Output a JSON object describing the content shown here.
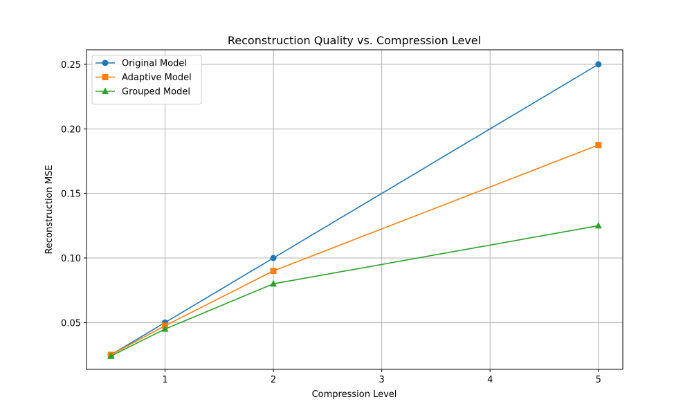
{
  "chart_data": {
    "type": "line",
    "title": "Reconstruction Quality vs. Compression Level",
    "xlabel": "Compression Level",
    "ylabel": "Reconstruction MSE",
    "x": [
      0.5,
      1,
      2,
      5
    ],
    "xlim": [
      0.275,
      5.225
    ],
    "ylim": [
      0.01375,
      0.26125
    ],
    "xticks": [
      1,
      2,
      3,
      4,
      5
    ],
    "xtick_labels": [
      "1",
      "2",
      "3",
      "4",
      "5"
    ],
    "yticks": [
      0.05,
      0.1,
      0.15,
      0.2,
      0.25
    ],
    "ytick_labels": [
      "0.05",
      "0.10",
      "0.15",
      "0.20",
      "0.25"
    ],
    "grid": true,
    "legend_position": "top-left",
    "series": [
      {
        "name": "Original Model",
        "values": [
          0.025,
          0.05,
          0.1,
          0.25
        ],
        "color": "#1f77b4",
        "marker": "circle"
      },
      {
        "name": "Adaptive Model",
        "values": [
          0.025,
          0.0475,
          0.09,
          0.1875
        ],
        "color": "#ff7f0e",
        "marker": "square"
      },
      {
        "name": "Grouped Model",
        "values": [
          0.024,
          0.045,
          0.08,
          0.125
        ],
        "color": "#2ca02c",
        "marker": "triangle"
      }
    ]
  }
}
